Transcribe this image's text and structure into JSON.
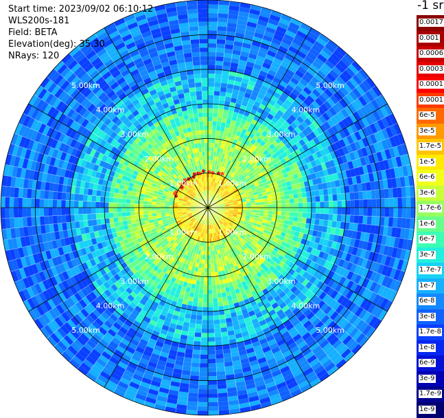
{
  "info": {
    "start_time": "Start time: 2023/09/02 06:10:12",
    "instrument": "WLS200s-181",
    "field": "Field: BETA",
    "elevation": "Elevation(deg): 35.30",
    "nrays": "NRays: 120"
  },
  "chart_data": {
    "type": "heatmap",
    "projection": "polar-ppi",
    "title": "",
    "start_time": "2023/09/02 06:10:12",
    "instrument": "WLS200s-181",
    "field": "BETA",
    "elevation_deg": 35.3,
    "n_rays": 120,
    "range_max_km": 6,
    "range_rings_km": [
      1,
      2,
      3,
      4,
      5
    ],
    "range_labels": [
      "1.00km",
      "2.00km",
      "3.00km",
      "4.00km",
      "5.00km"
    ],
    "spokes_deg": [
      0,
      30,
      60,
      90,
      120,
      150,
      180,
      210,
      240,
      270,
      300,
      330
    ],
    "colorbar": {
      "unit": "-1 sr",
      "labels": [
        "0.0017",
        "0.001",
        "0.0006",
        "0.0003",
        "0.00017",
        "0.0001",
        "6e-5",
        "3e-5",
        "1.7e-5",
        "1e-5",
        "6e-6",
        "3e-6",
        "1.7e-6",
        "1e-6",
        "6e-7",
        "3e-7",
        "1.7e-7",
        "1e-7",
        "6e-8",
        "3e-8",
        "1.7e-8",
        "1e-8",
        "6e-9",
        "3e-9",
        "1.7e-9",
        "1e-9"
      ],
      "colors": [
        "#8b0000",
        "#a80000",
        "#c80000",
        "#e60000",
        "#ff0000",
        "#ff3a00",
        "#ff6a00",
        "#ff9a00",
        "#ffc400",
        "#ffea00",
        "#f2ff1a",
        "#c8ff3a",
        "#96ff5e",
        "#66ff8c",
        "#3cffb4",
        "#22f0dc",
        "#18d2f6",
        "#16b0ff",
        "#1488ff",
        "#1062ff",
        "#0a40ff",
        "#0626f2",
        "#0410d6",
        "#0000b4",
        "#000090",
        "#000070"
      ]
    }
  }
}
